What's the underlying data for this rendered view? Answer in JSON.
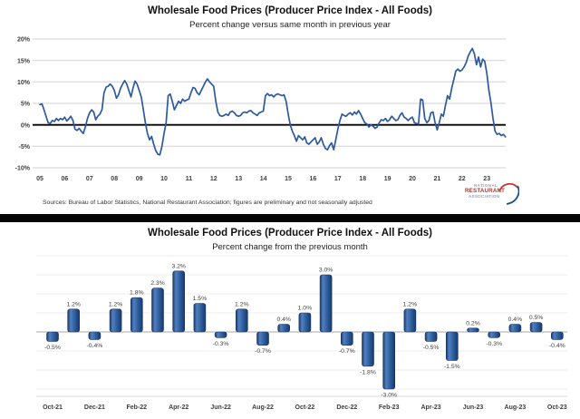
{
  "top_section": {
    "source_note": "Sources: Bureau of Labor Statistics, National Restaurant Association; figures are preliminary and not seasonally adjusted",
    "logo": {
      "line1": "NATIONAL",
      "line2": "RESTAURANT",
      "line3": "ASSOCIATION"
    }
  },
  "chart_data": [
    {
      "type": "line",
      "title": "Wholesale Food Prices (Producer Price Index - All Foods)",
      "subtitle": "Percent change versus same month in previous year",
      "x_start": "Jan-2005",
      "x_end": "Oct-2023",
      "x_tick_labels": [
        "05",
        "06",
        "07",
        "08",
        "09",
        "10",
        "11",
        "12",
        "13",
        "14",
        "15",
        "16",
        "17",
        "18",
        "19",
        "20",
        "21",
        "22",
        "23"
      ],
      "y_ticks": [
        "20%",
        "15%",
        "10%",
        "5%",
        "0%",
        "-5%",
        "-10%"
      ],
      "y_grid": [
        20,
        15,
        10,
        5,
        0,
        -5,
        -10
      ],
      "ylim": [
        -10,
        20
      ],
      "grid": true,
      "line_color": "#2d5a9e",
      "zero_line_color": "#000000",
      "values": [
        4.7,
        4.9,
        3.5,
        2.0,
        0.5,
        0.3,
        1.0,
        0.8,
        1.5,
        1.0,
        1.5,
        1.2,
        1.8,
        0.9,
        1.4,
        2.0,
        1.0,
        -1.0,
        -1.3,
        -0.8,
        -1.5,
        -2.0,
        -0.5,
        1.5,
        2.8,
        3.5,
        3.0,
        1.2,
        2.0,
        2.5,
        3.5,
        7.5,
        8.8,
        9.0,
        9.5,
        9.0,
        8.0,
        6.2,
        7.0,
        8.5,
        9.5,
        10.3,
        9.5,
        8.0,
        6.5,
        8.5,
        10.2,
        9.5,
        8.0,
        6.5,
        3.5,
        0.5,
        -2.0,
        -3.5,
        -2.7,
        -4.5,
        -6.0,
        -6.8,
        -7.0,
        -5.0,
        -2.0,
        0.5,
        6.8,
        7.2,
        5.5,
        3.5,
        4.5,
        5.5,
        5.0,
        6.0,
        5.5,
        5.8,
        6.0,
        7.5,
        8.7,
        8.5,
        7.5,
        7.0,
        8.0,
        9.0,
        10.0,
        10.7,
        10.0,
        9.5,
        9.0,
        5.5,
        3.0,
        2.2,
        2.0,
        2.2,
        2.5,
        2.2,
        3.0,
        3.2,
        2.8,
        2.2,
        2.0,
        2.2,
        2.8,
        3.0,
        2.8,
        3.2,
        3.3,
        2.8,
        2.5,
        2.2,
        2.8,
        3.0,
        3.2,
        6.8,
        7.3,
        6.8,
        7.0,
        6.5,
        7.0,
        7.2,
        7.0,
        6.8,
        7.0,
        5.5,
        2.5,
        0.0,
        -1.5,
        -2.5,
        -3.8,
        -2.5,
        -3.0,
        -3.5,
        -2.8,
        -4.2,
        -4.5,
        -4.0,
        -3.5,
        -3.0,
        -4.5,
        -4.0,
        -3.0,
        -4.5,
        -5.5,
        -5.8,
        -4.8,
        -4.2,
        -5.8,
        -3.5,
        -1.0,
        1.0,
        2.5,
        2.2,
        2.0,
        2.5,
        2.8,
        2.3,
        3.0,
        2.5,
        3.3,
        2.5,
        1.5,
        0.5,
        0.2,
        -0.5,
        0.0,
        -0.3,
        -0.8,
        -0.5,
        0.5,
        1.2,
        1.0,
        1.5,
        0.8,
        1.2,
        2.0,
        1.5,
        1.0,
        1.2,
        2.2,
        2.8,
        1.8,
        1.5,
        1.0,
        1.5,
        1.8,
        0.5,
        0.3,
        0.2,
        6.0,
        5.8,
        1.5,
        0.5,
        1.0,
        2.8,
        3.0,
        0.5,
        -1.2,
        0.5,
        2.5,
        2.0,
        4.5,
        6.8,
        6.0,
        8.5,
        10.5,
        12.5,
        13.0,
        12.5,
        12.8,
        13.5,
        14.5,
        16.0,
        17.0,
        17.8,
        16.5,
        14.0,
        15.8,
        13.5,
        15.3,
        14.8,
        12.0,
        8.0,
        5.0,
        1.5,
        -1.5,
        -2.2,
        -2.0,
        -2.5,
        -2.2,
        -2.8
      ]
    },
    {
      "type": "bar",
      "title": "Wholesale Food Prices (Producer Price Index - All Foods)",
      "subtitle": "Percent change from the previous month",
      "categories": [
        "Oct-21",
        "Nov-21",
        "Dec-21",
        "Jan-22",
        "Feb-22",
        "Mar-22",
        "Apr-22",
        "May-22",
        "Jun-22",
        "Jul-22",
        "Aug-22",
        "Sep-22",
        "Oct-22",
        "Nov-22",
        "Dec-22",
        "Jan-23",
        "Feb-23",
        "Mar-23",
        "Apr-23",
        "May-23",
        "Jun-23",
        "Jul-23",
        "Aug-23",
        "Sep-23",
        "Oct-23"
      ],
      "values": [
        -0.5,
        1.2,
        -0.4,
        1.2,
        1.8,
        2.3,
        3.2,
        1.5,
        -0.3,
        1.2,
        -0.7,
        0.4,
        1.0,
        3.0,
        -0.7,
        -1.8,
        -3.0,
        1.2,
        -0.5,
        -1.5,
        0.2,
        -0.3,
        0.4,
        0.5,
        -0.4
      ],
      "labels": [
        "-0.5%",
        "1.2%",
        "-0.4%",
        "1.2%",
        "1.8%",
        "2.3%",
        "3.2%",
        "1.5%",
        "-0.3%",
        "1.2%",
        "-0.7%",
        "0.4%",
        "1.0%",
        "3.0%",
        "-0.7%",
        "-1.8%",
        "-3.0%",
        "1.2%",
        "-0.5%",
        "-1.5%",
        "0.2%",
        "-0.3%",
        "0.4%",
        "0.5%",
        "-0.4%"
      ],
      "x_tick_labels": [
        "Oct-21",
        "Dec-21",
        "Feb-22",
        "Apr-22",
        "Jun-22",
        "Aug-22",
        "Oct-22",
        "Dec-22",
        "Feb-23",
        "Apr-23",
        "Jun-23",
        "Aug-23",
        "Oct-23"
      ],
      "ylim": [
        -3.6,
        4.2
      ],
      "grid": true,
      "bar_color": "#2f5f9e",
      "bar_color_dark": "#17396b",
      "bar_color_light": "#527fc0"
    }
  ]
}
